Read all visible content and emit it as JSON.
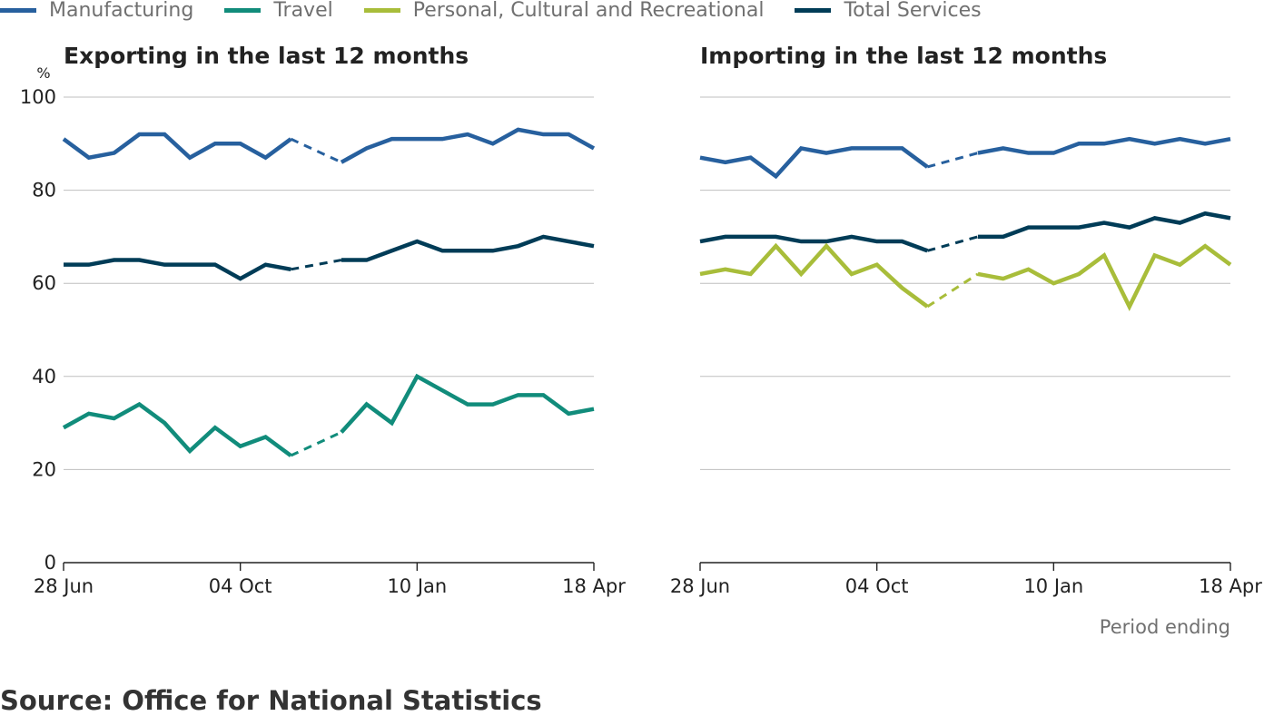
{
  "legend": [
    {
      "name": "Manufacturing",
      "color": "#27609e"
    },
    {
      "name": "Travel",
      "color": "#118c7b"
    },
    {
      "name": "Personal, Cultural and Recreational",
      "color": "#a8bd3a"
    },
    {
      "name": "Total Services",
      "color": "#003c57"
    }
  ],
  "source": "Source: Office for National Statistics",
  "chart_data": [
    {
      "type": "line",
      "title": "Exporting in the last 12 months",
      "ylabel": "%",
      "xlabel": "",
      "ylim": [
        0,
        100
      ],
      "yticks": [
        0,
        20,
        40,
        60,
        80,
        100
      ],
      "x_tick_labels": [
        "28 Jun",
        "04 Oct",
        "10 Jan",
        "18 Apr"
      ],
      "x_tick_index": [
        0,
        7,
        14,
        21
      ],
      "gap_after_index": 9,
      "grid": true,
      "series": [
        {
          "name": "Manufacturing",
          "color": "#27609e",
          "values": [
            91,
            87,
            88,
            92,
            92,
            87,
            90,
            90,
            87,
            91,
            null,
            86,
            89,
            91,
            91,
            91,
            92,
            90,
            93,
            92,
            92,
            89
          ]
        },
        {
          "name": "Total Services",
          "color": "#003c57",
          "values": [
            64,
            64,
            65,
            65,
            64,
            64,
            64,
            61,
            64,
            63,
            null,
            65,
            65,
            67,
            69,
            67,
            67,
            67,
            68,
            70,
            69,
            68
          ]
        },
        {
          "name": "Travel",
          "color": "#118c7b",
          "values": [
            29,
            32,
            31,
            34,
            30,
            24,
            29,
            25,
            27,
            23,
            null,
            28,
            34,
            30,
            40,
            37,
            34,
            34,
            36,
            36,
            32,
            33
          ]
        }
      ]
    },
    {
      "type": "line",
      "title": "Importing in the last 12 months",
      "xlabel": "Period ending",
      "ylim": [
        0,
        100
      ],
      "yticks": [
        0,
        20,
        40,
        60,
        80,
        100
      ],
      "x_tick_labels": [
        "28 Jun",
        "04 Oct",
        "10 Jan",
        "18 Apr"
      ],
      "x_tick_index": [
        0,
        7,
        14,
        21
      ],
      "gap_after_index": 9,
      "grid": true,
      "series": [
        {
          "name": "Manufacturing",
          "color": "#27609e",
          "values": [
            87,
            86,
            87,
            83,
            89,
            88,
            89,
            89,
            89,
            85,
            null,
            88,
            89,
            88,
            88,
            90,
            90,
            91,
            90,
            91,
            90,
            91
          ]
        },
        {
          "name": "Total Services",
          "color": "#003c57",
          "values": [
            69,
            70,
            70,
            70,
            69,
            69,
            70,
            69,
            69,
            67,
            null,
            70,
            70,
            72,
            72,
            72,
            73,
            72,
            74,
            73,
            75,
            74
          ]
        },
        {
          "name": "Personal, Cultural and Recreational",
          "color": "#a8bd3a",
          "values": [
            62,
            63,
            62,
            68,
            62,
            68,
            62,
            64,
            59,
            55,
            null,
            62,
            61,
            63,
            60,
            62,
            66,
            55,
            66,
            64,
            68,
            64
          ]
        }
      ]
    }
  ]
}
